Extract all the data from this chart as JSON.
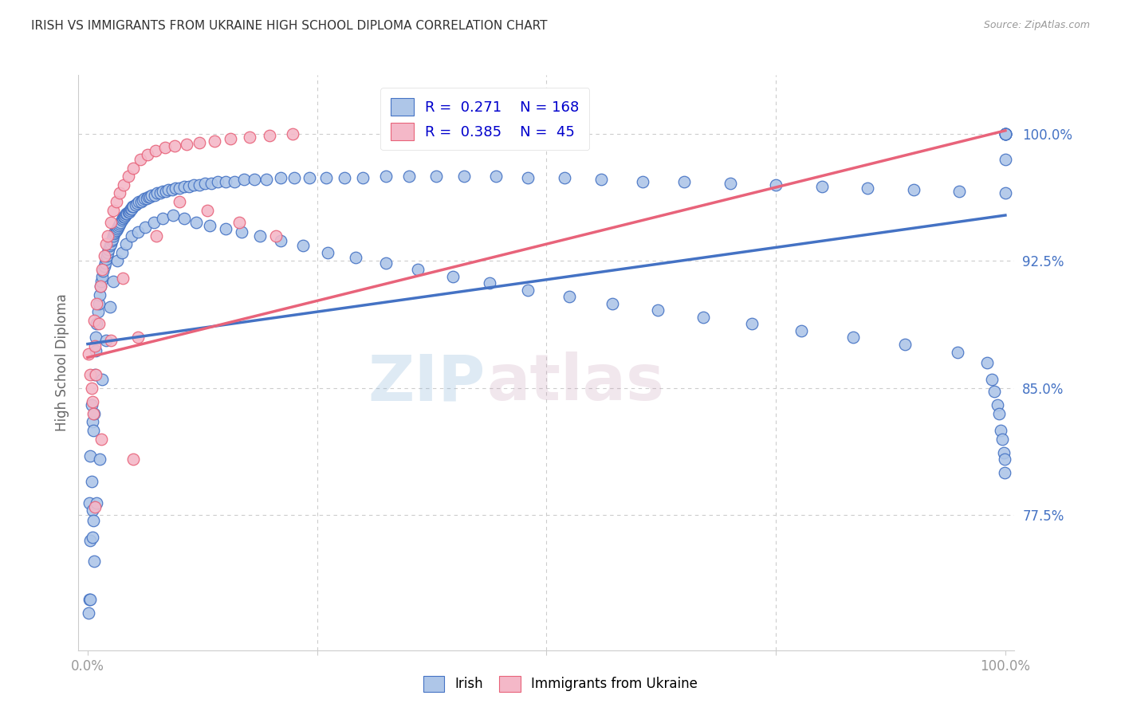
{
  "title": "IRISH VS IMMIGRANTS FROM UKRAINE HIGH SCHOOL DIPLOMA CORRELATION CHART",
  "source": "Source: ZipAtlas.com",
  "ylabel": "High School Diploma",
  "legend_irish_R": "0.271",
  "legend_irish_N": "168",
  "legend_ukraine_R": "0.385",
  "legend_ukraine_N": "45",
  "legend_label_irish": "Irish",
  "legend_label_ukraine": "Immigrants from Ukraine",
  "ytick_labels": [
    "77.5%",
    "85.0%",
    "92.5%",
    "100.0%"
  ],
  "ytick_values": [
    0.775,
    0.85,
    0.925,
    1.0
  ],
  "xlim": [
    -0.01,
    1.01
  ],
  "ylim": [
    0.695,
    1.035
  ],
  "watermark_zip": "ZIP",
  "watermark_atlas": "atlas",
  "irish_color": "#aec6e8",
  "irish_line_color": "#4472c4",
  "ukraine_color": "#f4b8c8",
  "ukraine_line_color": "#e8637a",
  "background_color": "#ffffff",
  "grid_color": "#cccccc",
  "title_color": "#333333",
  "title_fontsize": 11,
  "axis_label_color": "#666666",
  "ytick_color": "#4472c4",
  "xtick_color": "#999999",
  "legend_text_color": "#0000cc",
  "irish_line_start_y": 0.876,
  "irish_line_end_y": 0.952,
  "ukraine_line_start_y": 0.868,
  "ukraine_line_end_y": 1.002,
  "irish_scatter_x": [
    0.001,
    0.002,
    0.002,
    0.003,
    0.003,
    0.004,
    0.004,
    0.005,
    0.005,
    0.006,
    0.006,
    0.007,
    0.008,
    0.009,
    0.009,
    0.01,
    0.011,
    0.012,
    0.013,
    0.014,
    0.015,
    0.016,
    0.017,
    0.018,
    0.019,
    0.02,
    0.021,
    0.022,
    0.023,
    0.024,
    0.025,
    0.026,
    0.027,
    0.028,
    0.029,
    0.03,
    0.031,
    0.032,
    0.033,
    0.034,
    0.035,
    0.036,
    0.037,
    0.038,
    0.039,
    0.04,
    0.041,
    0.042,
    0.043,
    0.044,
    0.045,
    0.046,
    0.047,
    0.048,
    0.049,
    0.05,
    0.052,
    0.054,
    0.056,
    0.058,
    0.06,
    0.062,
    0.064,
    0.066,
    0.068,
    0.07,
    0.073,
    0.076,
    0.079,
    0.082,
    0.085,
    0.088,
    0.092,
    0.096,
    0.1,
    0.105,
    0.11,
    0.116,
    0.122,
    0.128,
    0.135,
    0.142,
    0.15,
    0.16,
    0.17,
    0.182,
    0.195,
    0.21,
    0.225,
    0.242,
    0.26,
    0.28,
    0.3,
    0.325,
    0.35,
    0.38,
    0.41,
    0.445,
    0.48,
    0.52,
    0.56,
    0.605,
    0.65,
    0.7,
    0.75,
    0.8,
    0.85,
    0.9,
    0.95,
    1.0,
    0.003,
    0.005,
    0.007,
    0.01,
    0.013,
    0.016,
    0.02,
    0.024,
    0.028,
    0.032,
    0.037,
    0.042,
    0.048,
    0.055,
    0.063,
    0.072,
    0.082,
    0.093,
    0.105,
    0.118,
    0.133,
    0.15,
    0.168,
    0.188,
    0.21,
    0.235,
    0.262,
    0.292,
    0.325,
    0.36,
    0.398,
    0.438,
    0.48,
    0.525,
    0.572,
    0.621,
    0.671,
    0.724,
    0.778,
    0.834,
    0.891,
    0.948,
    0.98,
    0.985,
    0.988,
    0.991,
    0.993,
    0.995,
    0.997,
    0.998,
    0.999,
    0.999,
    1.0,
    1.0,
    1.0,
    1.0,
    1.0,
    1.0
  ],
  "irish_scatter_y": [
    0.717,
    0.725,
    0.782,
    0.76,
    0.81,
    0.795,
    0.84,
    0.778,
    0.83,
    0.772,
    0.825,
    0.835,
    0.858,
    0.872,
    0.88,
    0.888,
    0.895,
    0.9,
    0.905,
    0.91,
    0.913,
    0.916,
    0.919,
    0.922,
    0.924,
    0.926,
    0.928,
    0.93,
    0.932,
    0.934,
    0.935,
    0.937,
    0.938,
    0.94,
    0.941,
    0.942,
    0.943,
    0.944,
    0.945,
    0.946,
    0.947,
    0.948,
    0.949,
    0.95,
    0.951,
    0.951,
    0.952,
    0.953,
    0.953,
    0.954,
    0.954,
    0.955,
    0.956,
    0.956,
    0.957,
    0.957,
    0.958,
    0.959,
    0.96,
    0.96,
    0.961,
    0.962,
    0.962,
    0.963,
    0.963,
    0.964,
    0.964,
    0.965,
    0.965,
    0.966,
    0.966,
    0.967,
    0.967,
    0.968,
    0.968,
    0.969,
    0.969,
    0.97,
    0.97,
    0.971,
    0.971,
    0.972,
    0.972,
    0.972,
    0.973,
    0.973,
    0.973,
    0.974,
    0.974,
    0.974,
    0.974,
    0.974,
    0.974,
    0.975,
    0.975,
    0.975,
    0.975,
    0.975,
    0.974,
    0.974,
    0.973,
    0.972,
    0.972,
    0.971,
    0.97,
    0.969,
    0.968,
    0.967,
    0.966,
    0.965,
    0.725,
    0.762,
    0.748,
    0.782,
    0.808,
    0.855,
    0.878,
    0.898,
    0.913,
    0.925,
    0.93,
    0.935,
    0.94,
    0.942,
    0.945,
    0.948,
    0.95,
    0.952,
    0.95,
    0.948,
    0.946,
    0.944,
    0.942,
    0.94,
    0.937,
    0.934,
    0.93,
    0.927,
    0.924,
    0.92,
    0.916,
    0.912,
    0.908,
    0.904,
    0.9,
    0.896,
    0.892,
    0.888,
    0.884,
    0.88,
    0.876,
    0.871,
    0.865,
    0.855,
    0.848,
    0.84,
    0.835,
    0.825,
    0.82,
    0.812,
    0.808,
    0.8,
    1.0,
    1.0,
    1.0,
    1.0,
    1.0,
    0.985
  ],
  "ukraine_scatter_x": [
    0.001,
    0.003,
    0.004,
    0.005,
    0.006,
    0.007,
    0.008,
    0.009,
    0.01,
    0.012,
    0.014,
    0.016,
    0.018,
    0.02,
    0.022,
    0.025,
    0.028,
    0.031,
    0.035,
    0.039,
    0.044,
    0.05,
    0.057,
    0.065,
    0.074,
    0.084,
    0.095,
    0.108,
    0.122,
    0.138,
    0.156,
    0.176,
    0.198,
    0.223,
    0.008,
    0.015,
    0.025,
    0.038,
    0.055,
    0.075,
    0.1,
    0.13,
    0.165,
    0.205,
    0.05
  ],
  "ukraine_scatter_y": [
    0.87,
    0.858,
    0.85,
    0.842,
    0.835,
    0.89,
    0.875,
    0.858,
    0.9,
    0.888,
    0.91,
    0.92,
    0.928,
    0.935,
    0.94,
    0.948,
    0.955,
    0.96,
    0.965,
    0.97,
    0.975,
    0.98,
    0.985,
    0.988,
    0.99,
    0.992,
    0.993,
    0.994,
    0.995,
    0.996,
    0.997,
    0.998,
    0.999,
    1.0,
    0.78,
    0.82,
    0.878,
    0.915,
    0.88,
    0.94,
    0.96,
    0.955,
    0.948,
    0.94,
    0.808
  ]
}
